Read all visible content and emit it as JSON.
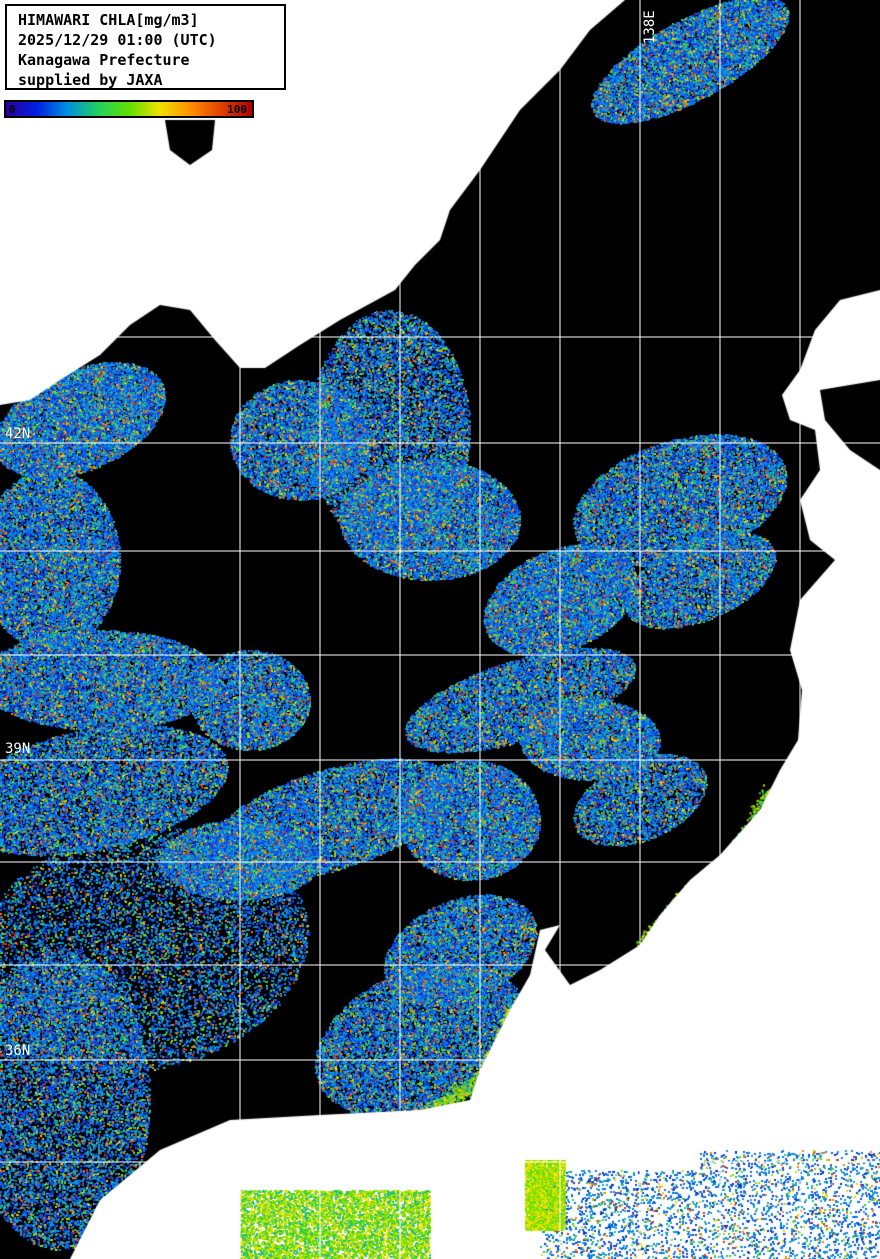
{
  "legend": {
    "lines": [
      "HIMAWARI CHLA[mg/m3]",
      "2025/12/29 01:00 (UTC)",
      "Kanagawa Prefecture",
      "supplied by JAXA"
    ]
  },
  "colorbar": {
    "min_label": "0",
    "max_label": "100",
    "colors": [
      "#2a00a0",
      "#0020e0",
      "#0090e0",
      "#20d060",
      "#60e000",
      "#f0e000",
      "#ff9000",
      "#e04000",
      "#b00000"
    ]
  },
  "grid_labels": {
    "lat": [
      "42N",
      "39N",
      "36N"
    ],
    "lon": [
      "138E"
    ]
  },
  "colors": {
    "land": "#ffffff",
    "no_data": "#000000",
    "grid": "#ffffff"
  }
}
